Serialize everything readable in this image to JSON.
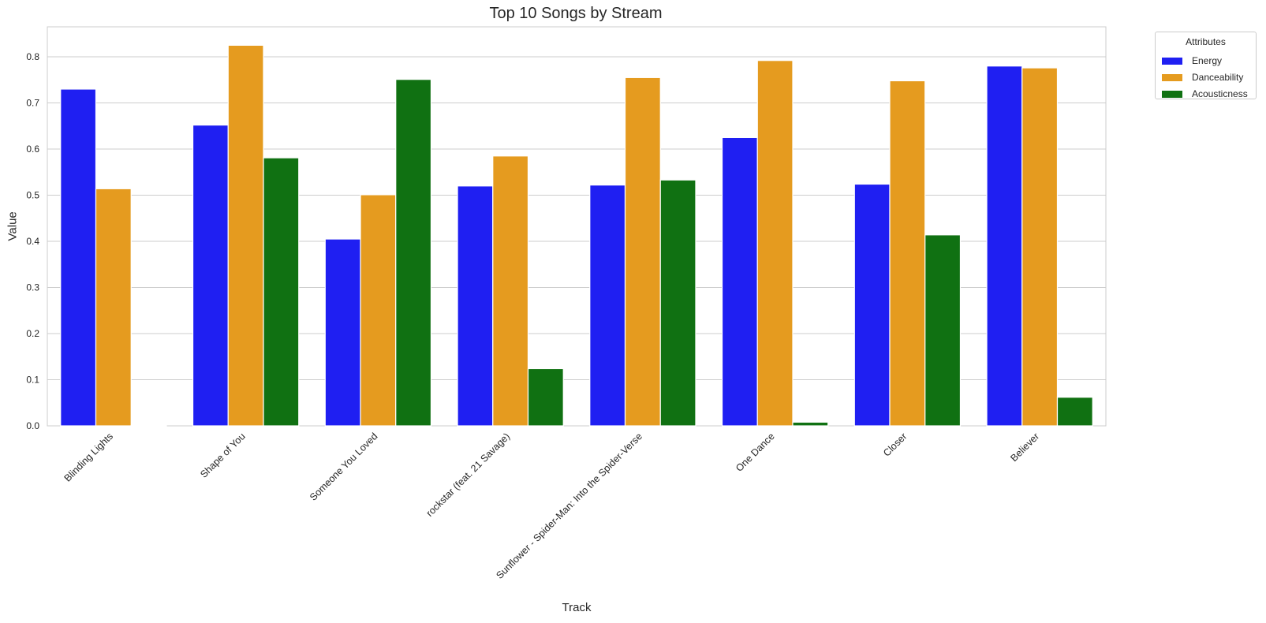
{
  "chart_data": {
    "type": "bar",
    "title": "Top 10 Songs by Stream",
    "xlabel": "Track",
    "ylabel": "Value",
    "ylim": [
      0,
      0.865
    ],
    "yticks": [
      "0.0",
      "0.1",
      "0.2",
      "0.3",
      "0.4",
      "0.5",
      "0.6",
      "0.7",
      "0.8"
    ],
    "grid": true,
    "legend": {
      "title": "Attributes",
      "placement": "outside top-right"
    },
    "categories": [
      "Blinding Lights",
      "Shape of You",
      "Someone You Loved",
      "rockstar (feat. 21 Savage)",
      "Sunflower - Spider-Man: Into the Spider-Verse",
      "One Dance",
      "Closer",
      "Believer"
    ],
    "series": [
      {
        "name": "Energy",
        "color": "#1f1ff2",
        "values": [
          0.73,
          0.652,
          0.405,
          0.52,
          0.522,
          0.625,
          0.524,
          0.78
        ]
      },
      {
        "name": "Danceability",
        "color": "#e59b1f",
        "values": [
          0.514,
          0.825,
          0.501,
          0.585,
          0.755,
          0.792,
          0.748,
          0.776
        ]
      },
      {
        "name": "Acousticness",
        "color": "#107112",
        "values": [
          0.001,
          0.581,
          0.751,
          0.124,
          0.533,
          0.008,
          0.414,
          0.062
        ]
      }
    ]
  }
}
